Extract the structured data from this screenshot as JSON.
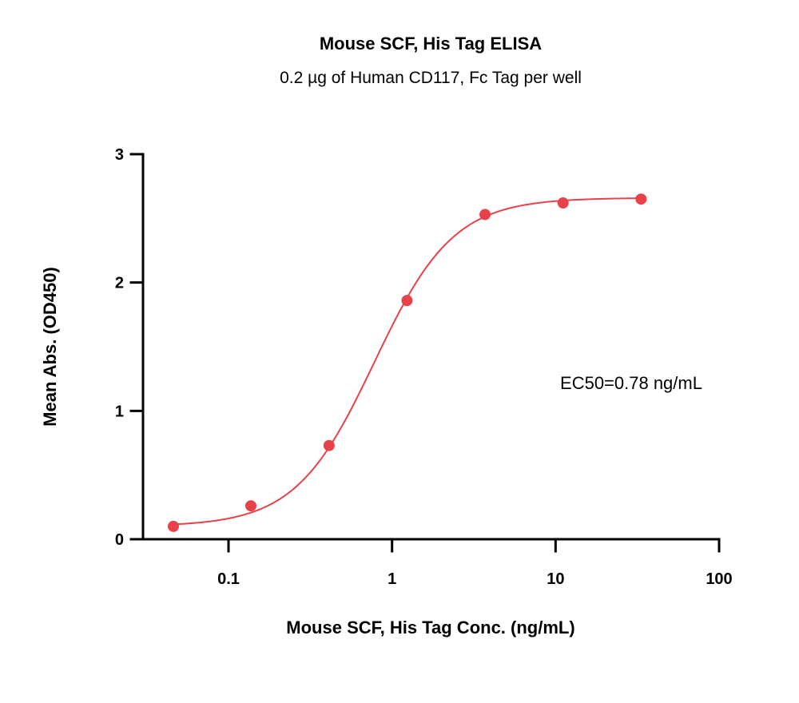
{
  "chart_data": {
    "type": "scatter",
    "title": "Mouse SCF, His Tag ELISA",
    "subtitle": "0.2 µg of Human CD117, Fc Tag per well",
    "xlabel": "Mouse SCF, His Tag Conc. (ng/mL)",
    "ylabel": "Mean Abs. (OD450)",
    "xscale": "log",
    "xlim": [
      0.03,
      100
    ],
    "ylim": [
      0,
      3
    ],
    "xticks": [
      0.1,
      1,
      10,
      100
    ],
    "xtick_labels": [
      "0.1",
      "1",
      "10",
      "100"
    ],
    "yticks": [
      0,
      1,
      2,
      3
    ],
    "ytick_labels": [
      "0",
      "1",
      "2",
      "3"
    ],
    "grid": false,
    "series": [
      {
        "x": [
          0.046,
          0.137,
          0.412,
          1.235,
          3.704,
          11.11,
          33.33
        ],
        "y": [
          0.1,
          0.26,
          0.73,
          1.86,
          2.53,
          2.62,
          2.65
        ],
        "color": "#e8414a",
        "fit": "4PL"
      }
    ],
    "fit_params": {
      "bottom": 0.1,
      "top": 2.66,
      "ec50": 0.78,
      "hill": 1.8
    },
    "annotations": [
      {
        "text": "EC50=0.78 ng/mL"
      }
    ]
  }
}
